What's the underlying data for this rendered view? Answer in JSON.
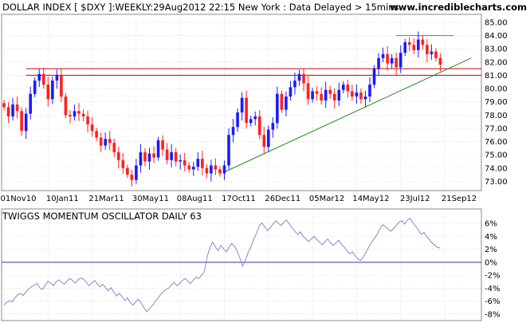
{
  "header": {
    "title": "DOLLAR INDEX [ $DXY ]:WEEKLY:29Aug2012 22:15 New York : Data Delayed > 15mins",
    "website": "www.incrediblecharts.com"
  },
  "oscillator": {
    "title": "TWIGGS MOMENTUM OSCILLATOR DAILY 63"
  },
  "colors": {
    "up": "#1a1aff",
    "down": "#ff2020",
    "resistance": "#cc0000",
    "trendline": "#1f8c1f",
    "top_line": "#6b8e00",
    "osc_line": "#8888cc",
    "zero_line": "#3333aa",
    "grid": "#cccccc"
  },
  "chart_data": [
    {
      "type": "candlestick",
      "title": "DOLLAR INDEX [ $DXY ]:WEEKLY:29Aug2012 22:15 New York : Data Delayed > 15mins",
      "x_tick_labels": [
        "01Nov10",
        "10Jan11",
        "21Mar11",
        "30May11",
        "08Aug11",
        "17Oct11",
        "26Dec11",
        "05Mar12",
        "14May12",
        "23Jul12",
        "21Sep12"
      ],
      "y_tick_labels": [
        "73.00",
        "74.00",
        "75.00",
        "76.00",
        "77.00",
        "78.00",
        "79.00",
        "80.00",
        "81.00",
        "82.00",
        "83.00",
        "84.00",
        "85.00"
      ],
      "ylim": [
        72.3,
        85.6
      ],
      "weeks": 100,
      "grid": true,
      "close": [
        78.6,
        77.9,
        78.8,
        78.3,
        76.8,
        78.1,
        79.6,
        80.6,
        81.1,
        80.3,
        79.2,
        80.6,
        81.0,
        79.4,
        78.0,
        77.9,
        78.3,
        78.1,
        77.9,
        77.3,
        76.8,
        76.3,
        75.7,
        76.2,
        75.9,
        75.2,
        74.6,
        74.0,
        73.5,
        73.1,
        74.2,
        75.2,
        74.5,
        75.1,
        74.8,
        76.1,
        75.4,
        74.6,
        75.2,
        74.5,
        74.6,
        74.2,
        73.9,
        74.1,
        74.7,
        74.0,
        73.6,
        74.2,
        73.9,
        73.6,
        74.2,
        76.5,
        77.1,
        78.2,
        79.3,
        77.4,
        77.7,
        77.9,
        76.5,
        75.6,
        76.9,
        77.4,
        79.6,
        78.4,
        79.4,
        80.1,
        80.6,
        81.1,
        80.4,
        79.2,
        79.8,
        79.6,
        79.1,
        79.9,
        79.6,
        79.1,
        79.9,
        80.3,
        79.8,
        79.4,
        79.7,
        79.2,
        79.4,
        80.3,
        81.5,
        82.3,
        82.6,
        81.9,
        82.3,
        81.6,
        82.7,
        83.5,
        83.3,
        82.9,
        83.7,
        83.3,
        82.6,
        82.8,
        82.3,
        81.8
      ],
      "reference_lines": [
        {
          "name": "resistance-upper",
          "value": 81.5
        },
        {
          "name": "resistance-lower",
          "value": 81.0
        },
        {
          "name": "top-line",
          "value": 84.0,
          "from_week": 89,
          "to_week": 102
        }
      ],
      "trendline": {
        "from_week": 50,
        "from_value": 73.7,
        "to_week": 106,
        "to_value": 82.3
      }
    },
    {
      "type": "line",
      "title": "TWIGGS MOMENTUM OSCILLATOR DAILY 63",
      "y_tick_labels": [
        "6%",
        "4%",
        "2%",
        "0%",
        "-2%",
        "-4%",
        "-6%",
        "-8%"
      ],
      "ylim": [
        -8.5,
        7
      ],
      "zero_line": 0,
      "days": 160,
      "values": [
        -6.6,
        -6.2,
        -5.9,
        -6.1,
        -5.5,
        -5.0,
        -4.8,
        -5.1,
        -4.6,
        -4.1,
        -3.8,
        -3.5,
        -3.3,
        -3.9,
        -4.2,
        -3.6,
        -2.9,
        -3.2,
        -3.6,
        -3.0,
        -2.7,
        -3.1,
        -3.4,
        -2.9,
        -2.5,
        -2.8,
        -3.2,
        -2.7,
        -2.4,
        -2.6,
        -3.1,
        -3.6,
        -3.2,
        -2.8,
        -3.3,
        -3.8,
        -3.4,
        -3.9,
        -4.4,
        -3.9,
        -4.6,
        -5.2,
        -4.8,
        -5.3,
        -5.9,
        -5.5,
        -6.2,
        -6.6,
        -6.1,
        -5.7,
        -6.3,
        -7.0,
        -7.6,
        -7.2,
        -6.7,
        -6.1,
        -5.6,
        -5.0,
        -4.6,
        -4.2,
        -4.0,
        -3.5,
        -3.1,
        -3.6,
        -3.3,
        -2.8,
        -2.5,
        -2.9,
        -3.3,
        -2.7,
        -2.3,
        -2.5,
        -2.0,
        -1.4,
        0.8,
        2.2,
        3.1,
        2.4,
        1.8,
        2.6,
        2.1,
        1.6,
        2.3,
        2.9,
        2.5,
        1.7,
        0.6,
        -0.6,
        0.4,
        1.5,
        2.4,
        3.6,
        4.4,
        5.6,
        6.1,
        5.5,
        4.9,
        5.3,
        5.9,
        6.4,
        6.0,
        5.7,
        6.2,
        6.5,
        5.9,
        5.3,
        4.8,
        4.3,
        4.7,
        4.0,
        3.6,
        3.2,
        3.6,
        4.0,
        3.5,
        3.1,
        2.7,
        3.2,
        3.6,
        3.0,
        2.6,
        3.0,
        3.4,
        2.8,
        2.3,
        1.8,
        1.3,
        1.6,
        1.0,
        0.5,
        0.3,
        0.9,
        1.6,
        2.4,
        3.1,
        3.7,
        4.3,
        5.2,
        5.8,
        5.5,
        5.1,
        4.8,
        5.2,
        5.7,
        6.2,
        6.4,
        5.9,
        6.5,
        6.8,
        6.1,
        5.6,
        5.0,
        4.3,
        4.6,
        4.0,
        3.5,
        3.0,
        2.6,
        2.3,
        2.2
      ]
    }
  ]
}
